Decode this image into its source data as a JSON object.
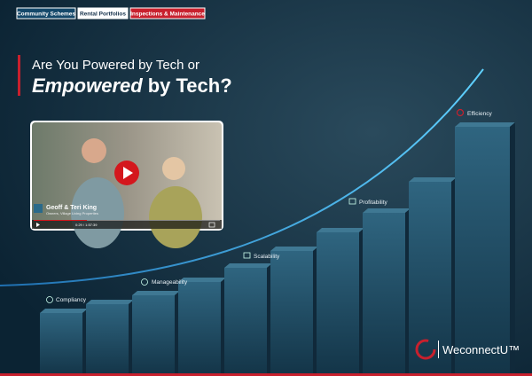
{
  "tabs": [
    "Community Schemes",
    "Rental Portfolios",
    "Inspections & Maintenance"
  ],
  "headline": {
    "line1": "Are You Powered by Tech or",
    "emphasis": "Empowered",
    "rest": "by Tech?"
  },
  "video": {
    "name": "Geoff & Teri King",
    "role": "Owners, Village Living Properties",
    "time": "0:29 / 1:57:39"
  },
  "stages": [
    "Compliancy",
    "Manageability",
    "Scalability",
    "Profitability",
    "Efficiency"
  ],
  "logo": "WeconnectU™"
}
